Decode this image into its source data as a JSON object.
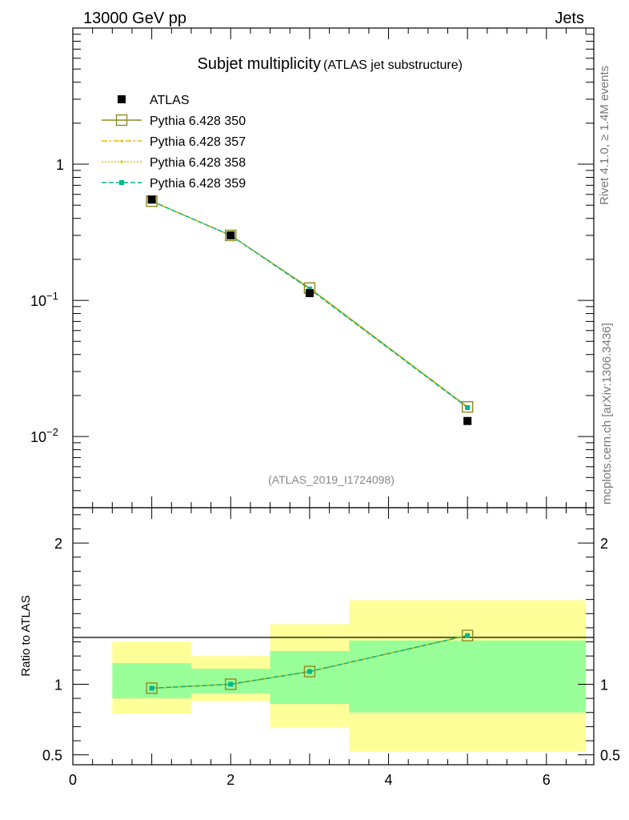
{
  "header": {
    "left": "13000 GeV pp",
    "right": "Jets"
  },
  "side_labels": {
    "top": "Rivet 4.1.0, ≥ 1.4M events",
    "bottom": "mcplots.cern.ch [arXiv:1306.3436]"
  },
  "colors": {
    "data": "#000000",
    "p350": "#8a8a1e",
    "p357": "#e6b800",
    "p358": "#cccc00",
    "p359": "#00b88a",
    "band_outer": "#ffff99",
    "band_inner": "#99ff99"
  },
  "chart_data": {
    "type": "line",
    "title": "Subjet multiplicity",
    "subtitle": "(ATLAS jet substructure)",
    "analysis_id": "(ATLAS_2019_I1724098)",
    "yscale": "log",
    "xlim": [
      0,
      6.6
    ],
    "ylim": [
      0.003,
      10
    ],
    "y_ticks": [
      {
        "value": 1,
        "label": "1",
        "exp": ""
      },
      {
        "value": 0.1,
        "label": "10",
        "exp": "−1"
      },
      {
        "value": 0.01,
        "label": "10",
        "exp": "−2"
      }
    ],
    "legend_placement": "top-left",
    "x": [
      1,
      2,
      3,
      5
    ],
    "series": [
      {
        "name": "ATLAS",
        "style": "data",
        "values": [
          0.55,
          0.3,
          0.113,
          0.013
        ]
      },
      {
        "name": "Pythia 6.428 350",
        "style": "open-square",
        "values": [
          0.535,
          0.3,
          0.123,
          0.0165
        ]
      },
      {
        "name": "Pythia 6.428 357",
        "style": "dashdot",
        "values": [
          0.535,
          0.3,
          0.122,
          0.0164
        ]
      },
      {
        "name": "Pythia 6.428 358",
        "style": "dotted",
        "values": [
          0.535,
          0.3,
          0.122,
          0.0164
        ]
      },
      {
        "name": "Pythia 6.428 359",
        "style": "dashed",
        "values": [
          0.535,
          0.3,
          0.121,
          0.0163
        ]
      }
    ],
    "ratio": {
      "ylabel": "Ratio to ATLAS",
      "ylim": [
        0.43,
        2.25
      ],
      "y_ticks": [
        {
          "value": 2,
          "label": "2"
        },
        {
          "value": 1,
          "label": "1"
        },
        {
          "value": 0.5,
          "label": "0.5"
        }
      ],
      "x_ticks": [
        0,
        2,
        4,
        6
      ],
      "bins": [
        {
          "xlo": 0.5,
          "xhi": 1.5,
          "outer": [
            0.79,
            1.3
          ],
          "inner": [
            0.9,
            1.15
          ]
        },
        {
          "xlo": 1.5,
          "xhi": 2.5,
          "outer": [
            0.88,
            1.2
          ],
          "inner": [
            0.935,
            1.11
          ]
        },
        {
          "xlo": 2.5,
          "xhi": 3.5,
          "outer": [
            0.695,
            1.425
          ],
          "inner": [
            0.86,
            1.235
          ]
        },
        {
          "xlo": 3.5,
          "xhi": 6.5,
          "outer": [
            0.525,
            1.595
          ],
          "inner": [
            0.8,
            1.31
          ]
        }
      ],
      "values": [
        0.972,
        1.0,
        1.09,
        1.345
      ]
    }
  }
}
